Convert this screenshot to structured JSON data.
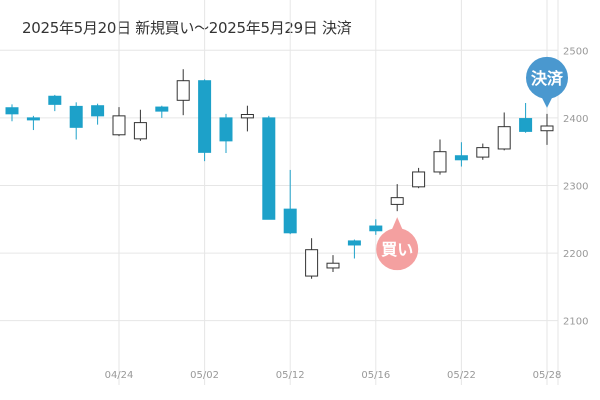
{
  "chart_data": {
    "type": "candlestick",
    "title": "2025年5月20日 新規買い～2025年5月29日 決済",
    "xlabel": "",
    "ylabel": "",
    "ylim": [
      2030,
      2530
    ],
    "y_ticks": [
      2100,
      2200,
      2300,
      2400,
      2500
    ],
    "x_ticks": [
      {
        "date": "04/24",
        "label": "04/24"
      },
      {
        "date": "05/02",
        "label": "05/02"
      },
      {
        "date": "05/12",
        "label": "05/12"
      },
      {
        "date": "05/16",
        "label": "05/16"
      },
      {
        "date": "05/22",
        "label": "05/22"
      },
      {
        "date": "05/28",
        "label": "05/28"
      }
    ],
    "grid": true,
    "colors": {
      "down": "#1da1c9",
      "up_fill": "#ffffff",
      "up_border": "#333333",
      "buy_bubble": "#f4a0a0",
      "sell_bubble": "#4a98cf",
      "grid": "#e6e6e6"
    },
    "candles": [
      {
        "date": "04/17",
        "open": 2415,
        "high": 2420,
        "low": 2395,
        "close": 2406
      },
      {
        "date": "04/18",
        "open": 2400,
        "high": 2403,
        "low": 2382,
        "close": 2399
      },
      {
        "date": "04/21",
        "open": 2432,
        "high": 2434,
        "low": 2410,
        "close": 2420
      },
      {
        "date": "04/22",
        "open": 2417,
        "high": 2423,
        "low": 2368,
        "close": 2386
      },
      {
        "date": "04/23",
        "open": 2418,
        "high": 2421,
        "low": 2390,
        "close": 2403
      },
      {
        "date": "04/24",
        "open": 2375,
        "high": 2416,
        "low": 2373,
        "close": 2403
      },
      {
        "date": "04/25",
        "open": 2369,
        "high": 2412,
        "low": 2366,
        "close": 2393
      },
      {
        "date": "04/28",
        "open": 2416,
        "high": 2418,
        "low": 2400,
        "close": 2410
      },
      {
        "date": "05/01",
        "open": 2426,
        "high": 2472,
        "low": 2404,
        "close": 2455
      },
      {
        "date": "05/02",
        "open": 2455,
        "high": 2457,
        "low": 2336,
        "close": 2349
      },
      {
        "date": "05/07",
        "open": 2400,
        "high": 2406,
        "low": 2348,
        "close": 2366
      },
      {
        "date": "05/08",
        "open": 2400,
        "high": 2418,
        "low": 2380,
        "close": 2405
      },
      {
        "date": "05/09",
        "open": 2400,
        "high": 2403,
        "low": 2250,
        "close": 2250
      },
      {
        "date": "05/12",
        "open": 2265,
        "high": 2323,
        "low": 2228,
        "close": 2230
      },
      {
        "date": "05/13",
        "open": 2166,
        "high": 2222,
        "low": 2162,
        "close": 2205
      },
      {
        "date": "05/14",
        "open": 2178,
        "high": 2197,
        "low": 2172,
        "close": 2185
      },
      {
        "date": "05/15",
        "open": 2218,
        "high": 2220,
        "low": 2192,
        "close": 2212
      },
      {
        "date": "05/16",
        "open": 2240,
        "high": 2250,
        "low": 2227,
        "close": 2233
      },
      {
        "date": "05/19",
        "open": 2272,
        "high": 2302,
        "low": 2262,
        "close": 2282
      },
      {
        "date": "05/20",
        "open": 2298,
        "high": 2326,
        "low": 2296,
        "close": 2320
      },
      {
        "date": "05/21",
        "open": 2320,
        "high": 2368,
        "low": 2316,
        "close": 2350
      },
      {
        "date": "05/22",
        "open": 2344,
        "high": 2364,
        "low": 2328,
        "close": 2338
      },
      {
        "date": "05/23",
        "open": 2342,
        "high": 2362,
        "low": 2338,
        "close": 2356
      },
      {
        "date": "05/26",
        "open": 2354,
        "high": 2408,
        "low": 2352,
        "close": 2387
      },
      {
        "date": "05/27",
        "open": 2399,
        "high": 2422,
        "low": 2378,
        "close": 2380
      },
      {
        "date": "05/28",
        "open": 2381,
        "high": 2406,
        "low": 2360,
        "close": 2388
      }
    ],
    "markers": [
      {
        "date": "05/19",
        "label": "買い",
        "kind": "buy"
      },
      {
        "date": "05/28",
        "label": "決済",
        "kind": "sell"
      }
    ]
  }
}
